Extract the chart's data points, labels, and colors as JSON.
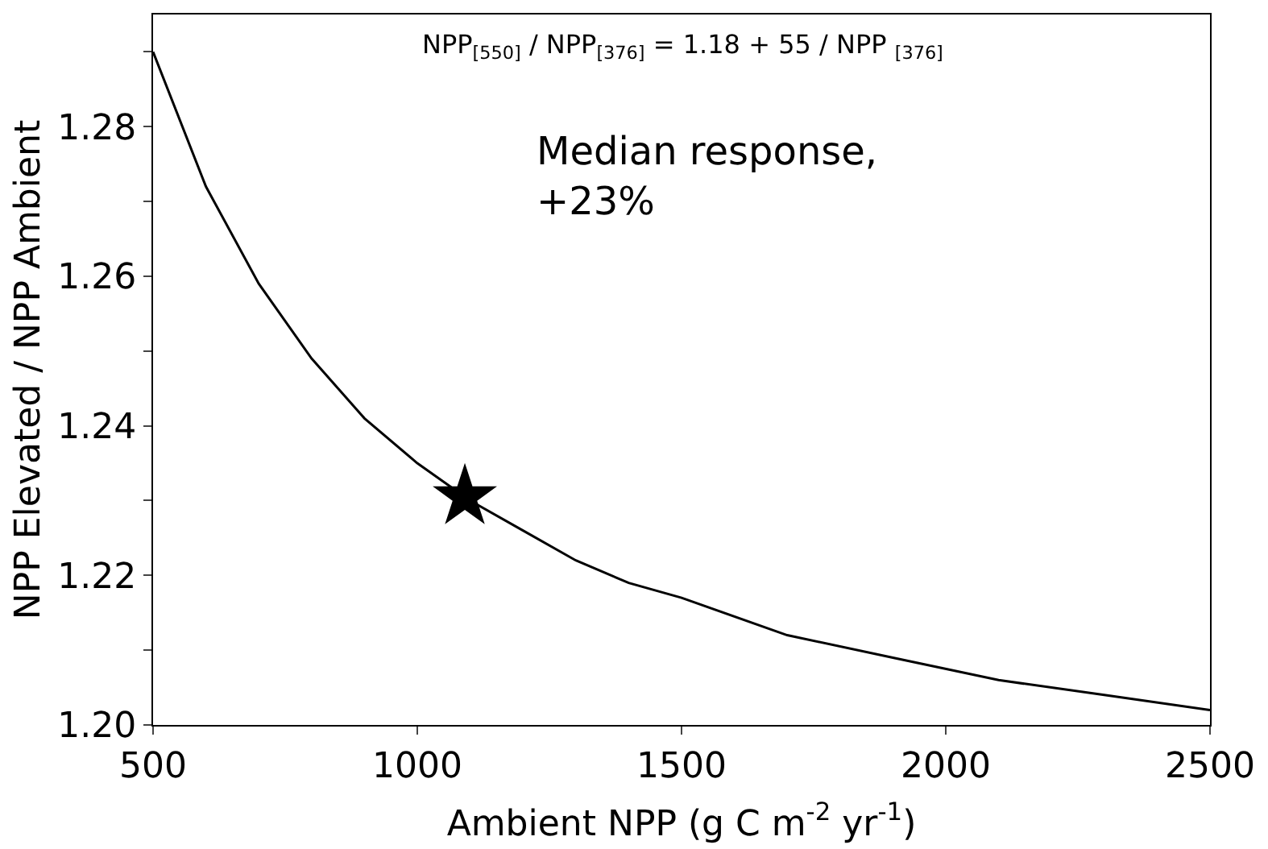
{
  "chart_data": {
    "type": "line",
    "xlabel": "Ambient NPP (g C m$^{-2}$ yr$^{-1}$)",
    "ylabel": "NPP Elevated / NPP Ambient",
    "annotations": [
      "NPP$_{[550]}$ / NPP$_{[376]}$ = 1.18 + 55 / NPP $_{[376]}$",
      "Median response,\n+23%"
    ],
    "xlim": [
      500,
      2500
    ],
    "xticks": [
      500,
      1000,
      1500,
      2000,
      2500
    ],
    "ylim": [
      1.2,
      1.295
    ],
    "yticks": [
      {
        "value": 1.2,
        "label": "1.20"
      },
      {
        "value": 1.21,
        "label": null
      },
      {
        "value": 1.22,
        "label": "1.22"
      },
      {
        "value": 1.23,
        "label": null
      },
      {
        "value": 1.24,
        "label": "1.24"
      },
      {
        "value": 1.25,
        "label": null
      },
      {
        "value": 1.26,
        "label": "1.26"
      },
      {
        "value": 1.27,
        "label": null
      },
      {
        "value": 1.28,
        "label": "1.28"
      },
      {
        "value": 1.29,
        "label": null
      }
    ],
    "legend": false,
    "series": [
      {
        "color": "#000000",
        "marker": "none",
        "line_style": "solid",
        "x": [
          500,
          600,
          700,
          800,
          900,
          1000,
          1100,
          1200,
          1300,
          1400,
          1500,
          1700,
          1900,
          2100,
          2300,
          2500
        ],
        "values": [
          1.29,
          1.272,
          1.259,
          1.249,
          1.241,
          1.235,
          1.23,
          1.226,
          1.222,
          1.219,
          1.217,
          1.212,
          1.209,
          1.206,
          1.204,
          1.202
        ]
      },
      {
        "type": "scatter",
        "color": "#000000",
        "marker": "star",
        "x": [
          1090
        ],
        "values": [
          1.2305
        ]
      }
    ]
  }
}
